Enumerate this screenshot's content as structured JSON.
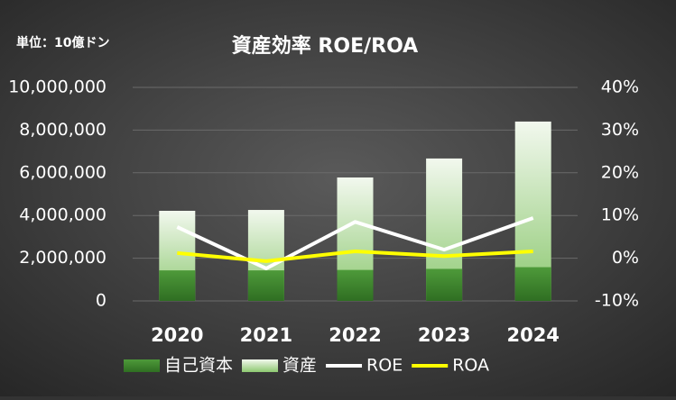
{
  "chart_data": {
    "type": "combo",
    "title": "資産効率 ROE/ROA",
    "unit_note": "単位：10億ドン",
    "categories": [
      "2020",
      "2021",
      "2022",
      "2023",
      "2024"
    ],
    "series": [
      {
        "name": "自己資本",
        "type": "bar",
        "color": "#4e9a3a",
        "values": [
          1430000,
          1430000,
          1450000,
          1500000,
          1580000
        ]
      },
      {
        "name": "資産",
        "type": "bar",
        "color": "#8cc870",
        "values": [
          4220000,
          4260000,
          5780000,
          6670000,
          8400000
        ]
      },
      {
        "name": "ROE",
        "type": "line",
        "axis": "y2",
        "color": "#ffffff",
        "values": [
          7.3,
          -2.4,
          8.5,
          2.0,
          9.4
        ]
      },
      {
        "name": "ROA",
        "type": "line",
        "axis": "y2",
        "color": "#ffff00",
        "values": [
          1.2,
          -0.7,
          1.6,
          0.5,
          1.6
        ]
      }
    ],
    "ylim": [
      0,
      10000000
    ],
    "yticks": [
      0,
      {
        "value": 2000000,
        "label": "2,000,000"
      },
      {
        "value": 4000000,
        "label": "4,000,000"
      },
      {
        "value": 6000000,
        "label": "6,000,000"
      },
      {
        "value": 8000000,
        "label": "8,000,000"
      },
      {
        "value": 10000000,
        "label": "10,000,000"
      }
    ],
    "y2lim": [
      -10,
      40
    ],
    "y2ticks": [
      {
        "value": -10,
        "label": "-10%"
      },
      {
        "value": 0,
        "label": "0%"
      },
      {
        "value": 10,
        "label": "10%"
      },
      {
        "value": 20,
        "label": "20%"
      },
      {
        "value": 30,
        "label": "30%"
      },
      {
        "value": 40,
        "label": "40%"
      }
    ],
    "grid": true
  }
}
